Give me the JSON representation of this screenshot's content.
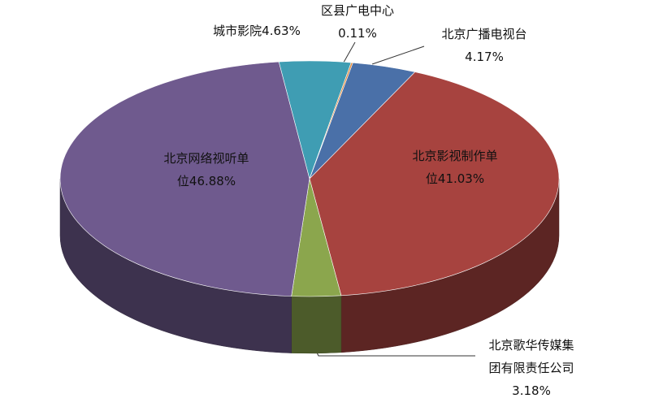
{
  "chart_data": {
    "type": "pie",
    "categories": [
      "北京广播电视台",
      "北京影视制作单位",
      "北京歌华传媒集团有限责任公司",
      "北京网络视听单位",
      "城市影院",
      "区县广电中心"
    ],
    "values": [
      4.17,
      41.03,
      3.18,
      46.88,
      4.63,
      0.11
    ],
    "value_labels": [
      "4.17%",
      "41.03%",
      "3.18%",
      "46.88%",
      "4.63%",
      "0.11%"
    ],
    "colors": [
      "#4a70a8",
      "#a7433f",
      "#8ba64d",
      "#6f5a8e",
      "#3f9db3",
      "#e3893a"
    ]
  }
}
